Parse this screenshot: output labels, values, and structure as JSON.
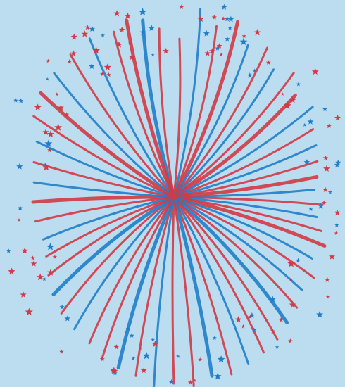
{
  "colors": {
    "background": "#bcdcf0",
    "red": "#d23a45",
    "blue": "#1f7ec8"
  },
  "firework": {
    "shape": "radial-burst",
    "streak_colors": [
      "red",
      "blue"
    ],
    "star_colors": [
      "red",
      "blue"
    ],
    "icon": "star-icon"
  }
}
